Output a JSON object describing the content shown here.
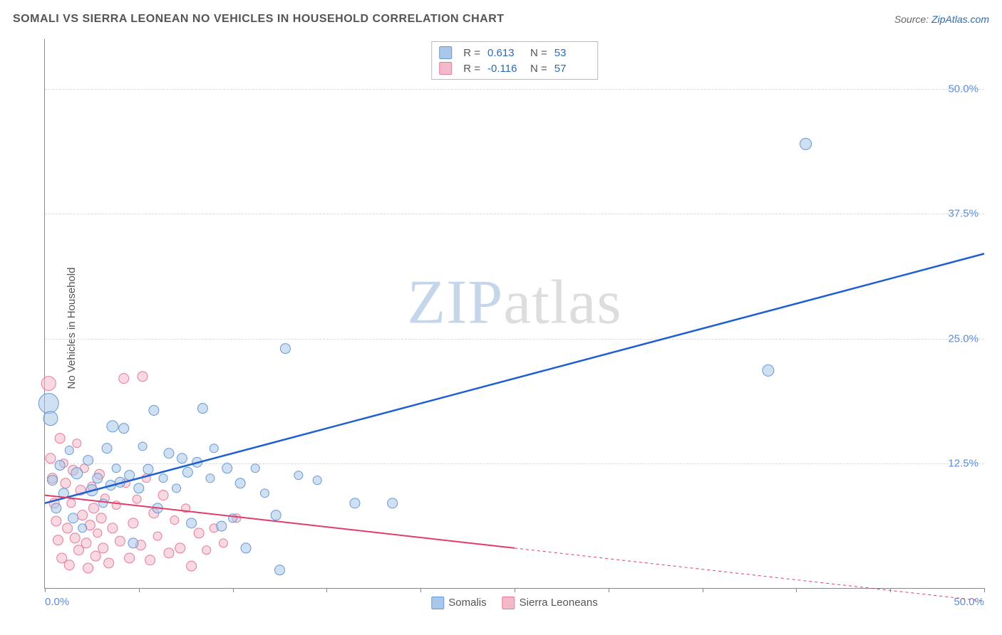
{
  "title": "SOMALI VS SIERRA LEONEAN NO VEHICLES IN HOUSEHOLD CORRELATION CHART",
  "source_label": "Source:",
  "source_name": "ZipAtlas.com",
  "ylabel": "No Vehicles in Household",
  "watermark_a": "ZIP",
  "watermark_b": "atlas",
  "chart": {
    "type": "scatter",
    "xlim": [
      0,
      50
    ],
    "ylim": [
      0,
      55
    ],
    "x_tick_start": "0.0%",
    "x_tick_end": "50.0%",
    "x_tick_positions_pct": [
      0,
      10,
      20,
      30,
      40,
      50,
      60,
      70,
      80,
      90,
      100
    ],
    "y_ticks": [
      {
        "v": 50.0,
        "label": "50.0%"
      },
      {
        "v": 37.5,
        "label": "37.5%"
      },
      {
        "v": 25.0,
        "label": "25.0%"
      },
      {
        "v": 12.5,
        "label": "12.5%"
      }
    ],
    "grid_color": "#dddddd",
    "axis_color": "#888888",
    "tick_label_color": "#5b8dd6",
    "background": "#ffffff",
    "title_fontsize": 16,
    "label_fontsize": 15,
    "series": [
      {
        "name": "Somalis",
        "fill": "#a9c7ea",
        "stroke": "#6698d4",
        "fill_opacity": 0.55,
        "trend": {
          "color": "#1f5fd0",
          "width": 2.5,
          "x1": 0,
          "y1": 8.5,
          "x2": 50,
          "y2": 33.5,
          "solid_until_x": 50
        },
        "corr": {
          "R": "0.613",
          "N": "53"
        },
        "points": [
          {
            "x": 0.2,
            "y": 18.5,
            "r": 14
          },
          {
            "x": 0.3,
            "y": 17.0,
            "r": 10
          },
          {
            "x": 0.4,
            "y": 10.8,
            "r": 7
          },
          {
            "x": 0.6,
            "y": 8.0,
            "r": 7
          },
          {
            "x": 0.8,
            "y": 12.3,
            "r": 7
          },
          {
            "x": 1.0,
            "y": 9.5,
            "r": 7
          },
          {
            "x": 1.3,
            "y": 13.8,
            "r": 6
          },
          {
            "x": 1.5,
            "y": 7.0,
            "r": 7
          },
          {
            "x": 1.7,
            "y": 11.5,
            "r": 8
          },
          {
            "x": 2.0,
            "y": 6.0,
            "r": 6
          },
          {
            "x": 2.3,
            "y": 12.8,
            "r": 7
          },
          {
            "x": 2.5,
            "y": 9.8,
            "r": 8
          },
          {
            "x": 2.8,
            "y": 11.0,
            "r": 7
          },
          {
            "x": 3.1,
            "y": 8.5,
            "r": 6
          },
          {
            "x": 3.3,
            "y": 14.0,
            "r": 7
          },
          {
            "x": 3.5,
            "y": 10.3,
            "r": 7
          },
          {
            "x": 3.6,
            "y": 16.2,
            "r": 8
          },
          {
            "x": 3.8,
            "y": 12.0,
            "r": 6
          },
          {
            "x": 4.0,
            "y": 10.6,
            "r": 7
          },
          {
            "x": 4.2,
            "y": 16.0,
            "r": 7
          },
          {
            "x": 4.5,
            "y": 11.3,
            "r": 7
          },
          {
            "x": 4.7,
            "y": 4.5,
            "r": 7
          },
          {
            "x": 5.0,
            "y": 10.0,
            "r": 7
          },
          {
            "x": 5.2,
            "y": 14.2,
            "r": 6
          },
          {
            "x": 5.5,
            "y": 11.9,
            "r": 7
          },
          {
            "x": 5.8,
            "y": 17.8,
            "r": 7
          },
          {
            "x": 6.0,
            "y": 8.0,
            "r": 7
          },
          {
            "x": 6.3,
            "y": 11.0,
            "r": 6
          },
          {
            "x": 6.6,
            "y": 13.5,
            "r": 7
          },
          {
            "x": 7.0,
            "y": 10.0,
            "r": 6
          },
          {
            "x": 7.3,
            "y": 13.0,
            "r": 7
          },
          {
            "x": 7.6,
            "y": 11.6,
            "r": 7
          },
          {
            "x": 7.8,
            "y": 6.5,
            "r": 7
          },
          {
            "x": 8.1,
            "y": 12.6,
            "r": 7
          },
          {
            "x": 8.4,
            "y": 18.0,
            "r": 7
          },
          {
            "x": 8.8,
            "y": 11.0,
            "r": 6
          },
          {
            "x": 9.0,
            "y": 14.0,
            "r": 6
          },
          {
            "x": 9.4,
            "y": 6.2,
            "r": 7
          },
          {
            "x": 9.7,
            "y": 12.0,
            "r": 7
          },
          {
            "x": 10.0,
            "y": 7.0,
            "r": 6
          },
          {
            "x": 10.4,
            "y": 10.5,
            "r": 7
          },
          {
            "x": 10.7,
            "y": 4.0,
            "r": 7
          },
          {
            "x": 11.2,
            "y": 12.0,
            "r": 6
          },
          {
            "x": 11.7,
            "y": 9.5,
            "r": 6
          },
          {
            "x": 12.3,
            "y": 7.3,
            "r": 7
          },
          {
            "x": 12.8,
            "y": 24.0,
            "r": 7
          },
          {
            "x": 13.5,
            "y": 11.3,
            "r": 6
          },
          {
            "x": 14.5,
            "y": 10.8,
            "r": 6
          },
          {
            "x": 16.5,
            "y": 8.5,
            "r": 7
          },
          {
            "x": 18.5,
            "y": 8.5,
            "r": 7
          },
          {
            "x": 12.5,
            "y": 1.8,
            "r": 7
          },
          {
            "x": 38.5,
            "y": 21.8,
            "r": 8
          },
          {
            "x": 40.5,
            "y": 44.5,
            "r": 8
          }
        ]
      },
      {
        "name": "Sierra Leoneans",
        "fill": "#f4b9c9",
        "stroke": "#e57a9a",
        "fill_opacity": 0.55,
        "trend": {
          "color": "#e23b6a",
          "width": 2.0,
          "x1": 0,
          "y1": 9.3,
          "x2": 25,
          "y2": 4.0,
          "dashed_extension": {
            "x2": 50,
            "y2": -1.3
          }
        },
        "corr": {
          "R": "-0.116",
          "N": "57"
        },
        "points": [
          {
            "x": 0.2,
            "y": 20.5,
            "r": 10
          },
          {
            "x": 0.3,
            "y": 13.0,
            "r": 7
          },
          {
            "x": 0.4,
            "y": 11.0,
            "r": 7
          },
          {
            "x": 0.5,
            "y": 8.5,
            "r": 7
          },
          {
            "x": 0.6,
            "y": 6.7,
            "r": 7
          },
          {
            "x": 0.7,
            "y": 4.8,
            "r": 7
          },
          {
            "x": 0.8,
            "y": 15.0,
            "r": 7
          },
          {
            "x": 0.9,
            "y": 3.0,
            "r": 7
          },
          {
            "x": 1.0,
            "y": 12.5,
            "r": 6
          },
          {
            "x": 1.1,
            "y": 10.5,
            "r": 7
          },
          {
            "x": 1.2,
            "y": 6.0,
            "r": 7
          },
          {
            "x": 1.3,
            "y": 2.3,
            "r": 7
          },
          {
            "x": 1.4,
            "y": 8.5,
            "r": 6
          },
          {
            "x": 1.5,
            "y": 11.8,
            "r": 7
          },
          {
            "x": 1.6,
            "y": 5.0,
            "r": 7
          },
          {
            "x": 1.7,
            "y": 14.5,
            "r": 6
          },
          {
            "x": 1.8,
            "y": 3.8,
            "r": 7
          },
          {
            "x": 1.9,
            "y": 9.8,
            "r": 7
          },
          {
            "x": 2.0,
            "y": 7.3,
            "r": 7
          },
          {
            "x": 2.1,
            "y": 12.0,
            "r": 6
          },
          {
            "x": 2.2,
            "y": 4.5,
            "r": 7
          },
          {
            "x": 2.3,
            "y": 2.0,
            "r": 7
          },
          {
            "x": 2.4,
            "y": 6.3,
            "r": 7
          },
          {
            "x": 2.5,
            "y": 10.2,
            "r": 6
          },
          {
            "x": 2.6,
            "y": 8.0,
            "r": 7
          },
          {
            "x": 2.7,
            "y": 3.2,
            "r": 7
          },
          {
            "x": 2.8,
            "y": 5.5,
            "r": 6
          },
          {
            "x": 2.9,
            "y": 11.4,
            "r": 7
          },
          {
            "x": 3.0,
            "y": 7.0,
            "r": 7
          },
          {
            "x": 3.1,
            "y": 4.0,
            "r": 7
          },
          {
            "x": 3.2,
            "y": 9.0,
            "r": 6
          },
          {
            "x": 3.4,
            "y": 2.5,
            "r": 7
          },
          {
            "x": 3.6,
            "y": 6.0,
            "r": 7
          },
          {
            "x": 3.8,
            "y": 8.3,
            "r": 6
          },
          {
            "x": 4.0,
            "y": 4.7,
            "r": 7
          },
          {
            "x": 4.2,
            "y": 21.0,
            "r": 7
          },
          {
            "x": 4.3,
            "y": 10.5,
            "r": 6
          },
          {
            "x": 4.5,
            "y": 3.0,
            "r": 7
          },
          {
            "x": 4.7,
            "y": 6.5,
            "r": 7
          },
          {
            "x": 4.9,
            "y": 8.9,
            "r": 6
          },
          {
            "x": 5.1,
            "y": 4.3,
            "r": 7
          },
          {
            "x": 5.2,
            "y": 21.2,
            "r": 7
          },
          {
            "x": 5.4,
            "y": 11.0,
            "r": 6
          },
          {
            "x": 5.6,
            "y": 2.8,
            "r": 7
          },
          {
            "x": 5.8,
            "y": 7.5,
            "r": 7
          },
          {
            "x": 6.0,
            "y": 5.2,
            "r": 6
          },
          {
            "x": 6.3,
            "y": 9.3,
            "r": 7
          },
          {
            "x": 6.6,
            "y": 3.5,
            "r": 7
          },
          {
            "x": 6.9,
            "y": 6.8,
            "r": 6
          },
          {
            "x": 7.2,
            "y": 4.0,
            "r": 7
          },
          {
            "x": 7.5,
            "y": 8.0,
            "r": 6
          },
          {
            "x": 7.8,
            "y": 2.2,
            "r": 7
          },
          {
            "x": 8.2,
            "y": 5.5,
            "r": 7
          },
          {
            "x": 8.6,
            "y": 3.8,
            "r": 6
          },
          {
            "x": 9.0,
            "y": 6.0,
            "r": 6
          },
          {
            "x": 9.5,
            "y": 4.5,
            "r": 6
          },
          {
            "x": 10.2,
            "y": 7.0,
            "r": 6
          }
        ]
      }
    ],
    "legend": {
      "items": [
        {
          "label": "Somalis",
          "fill": "#a9c7ea",
          "stroke": "#6698d4"
        },
        {
          "label": "Sierra Leoneans",
          "fill": "#f4b9c9",
          "stroke": "#e57a9a"
        }
      ]
    }
  }
}
